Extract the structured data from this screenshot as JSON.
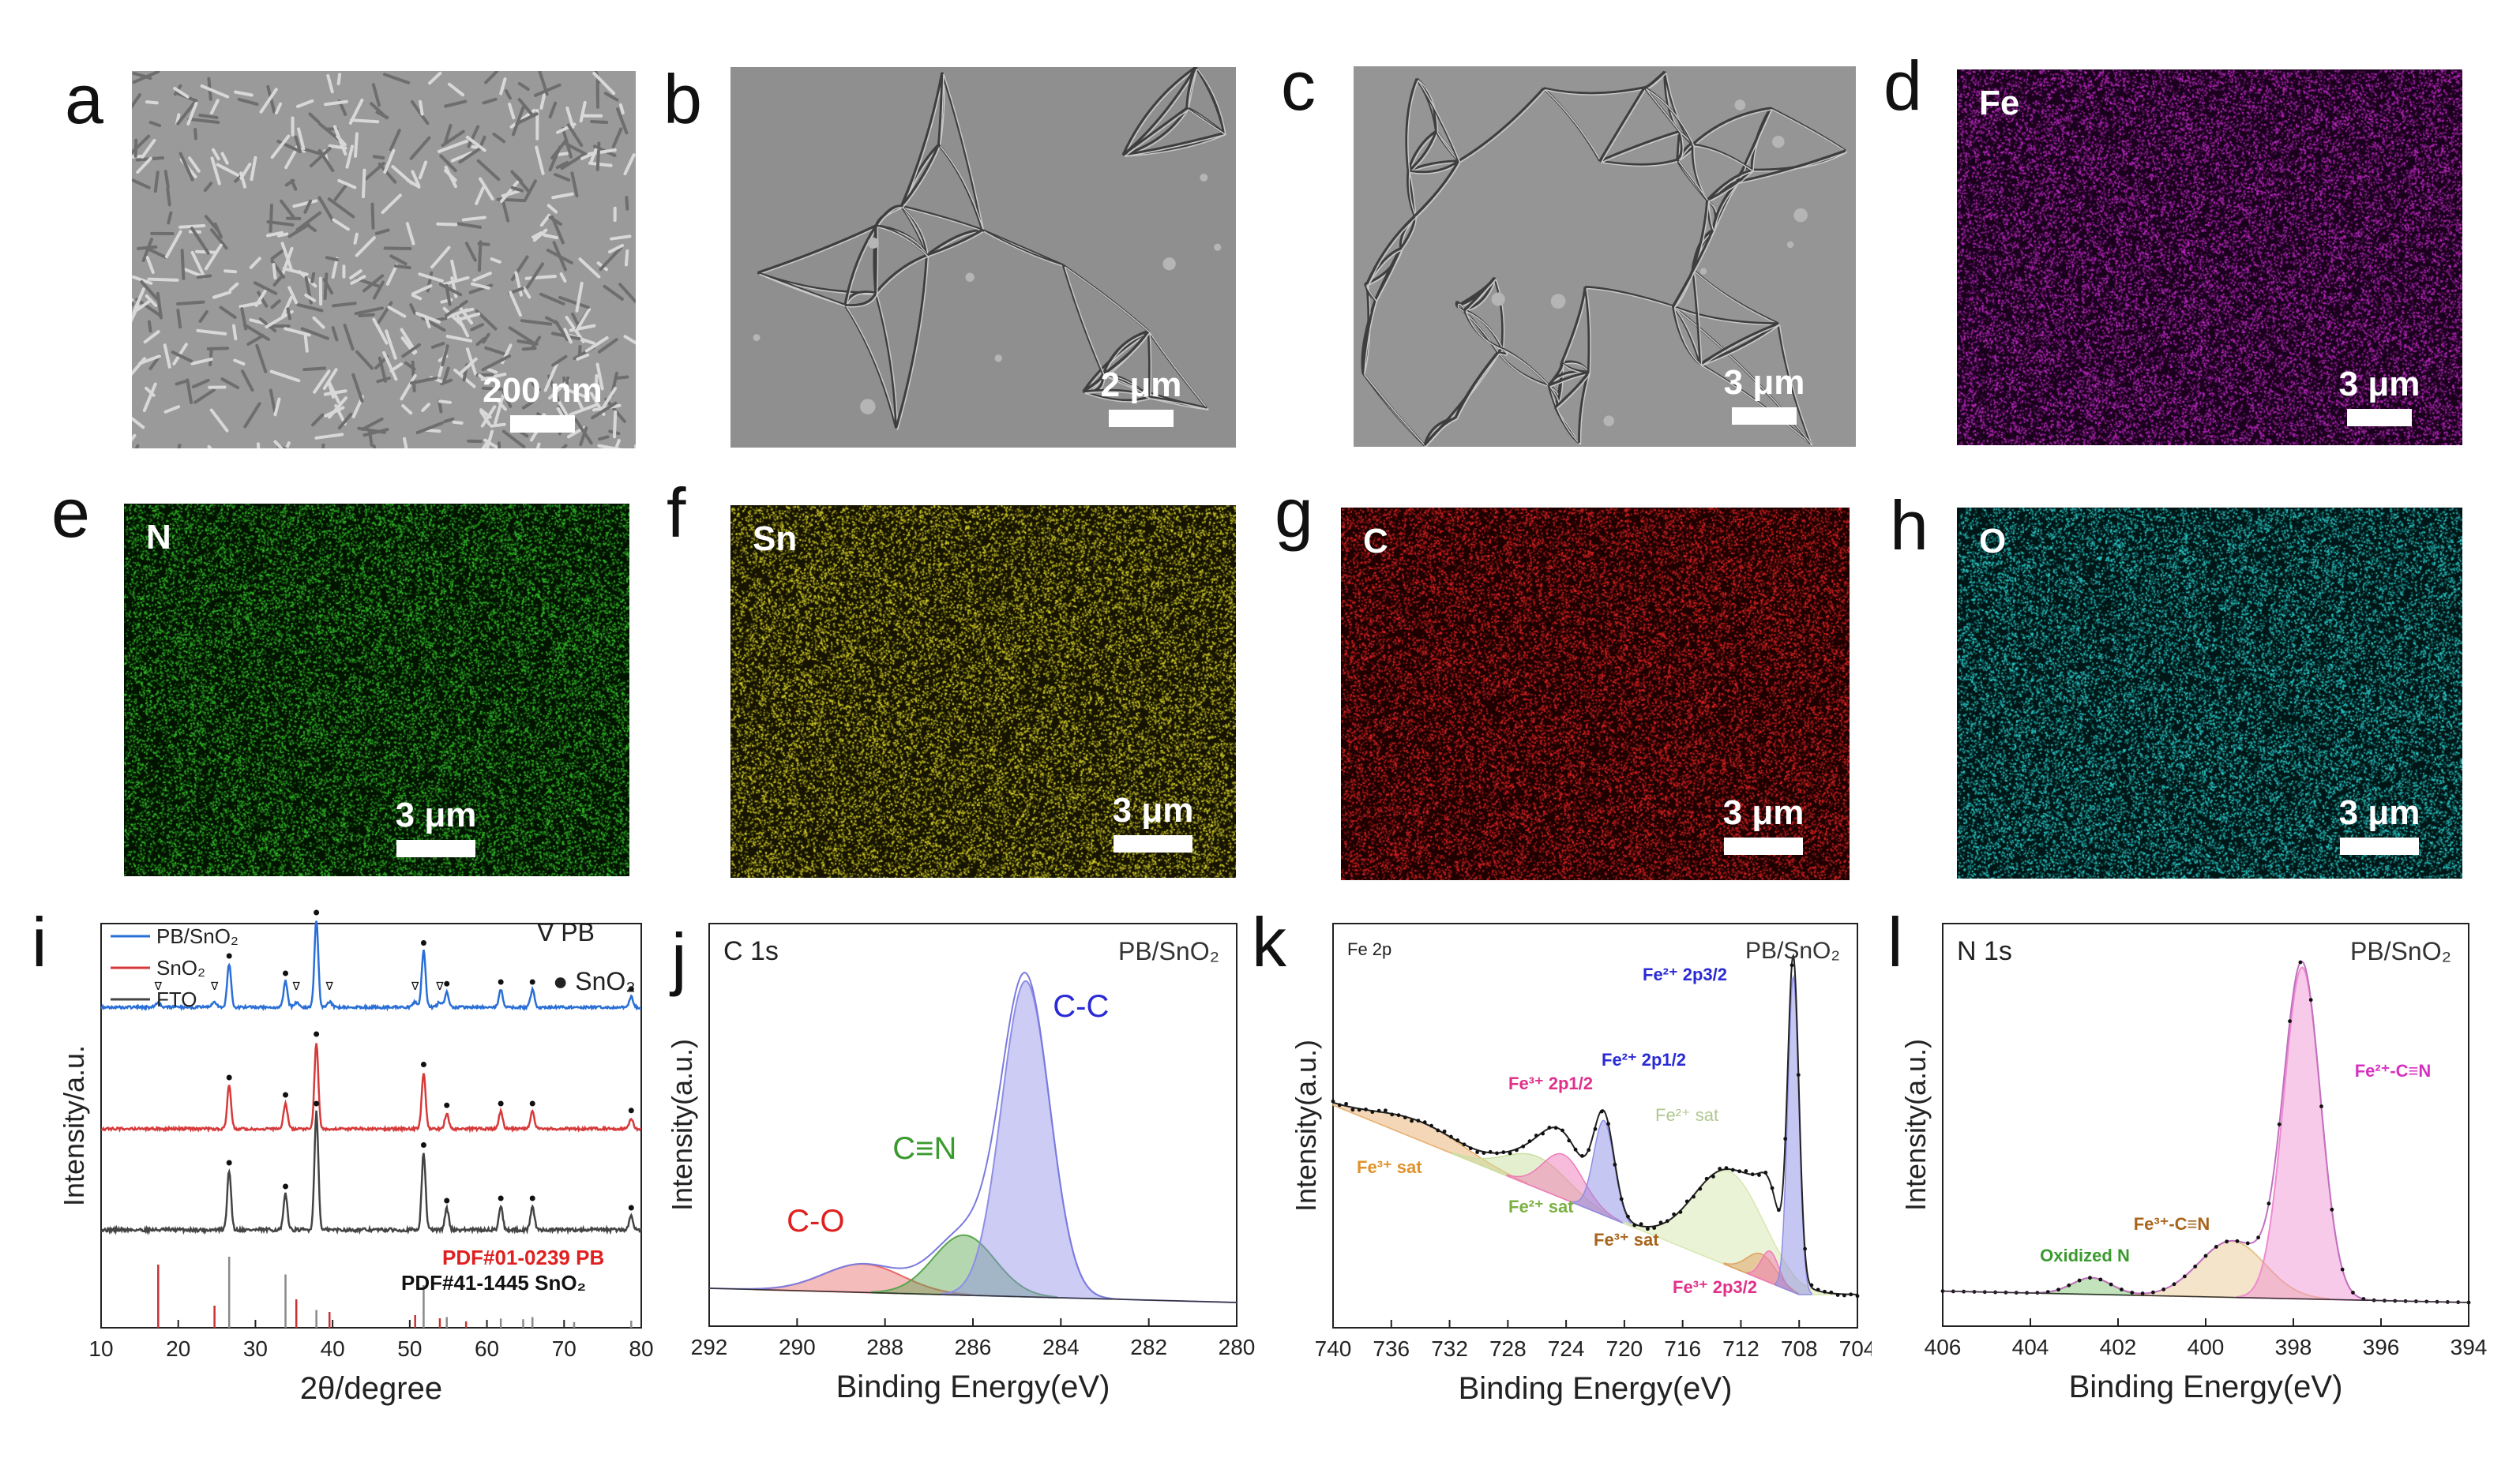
{
  "panels": {
    "a": {
      "letter": "a",
      "scale": "200 nm"
    },
    "b": {
      "letter": "b",
      "scale": "2 μm"
    },
    "c": {
      "letter": "c",
      "scale": "3 μm"
    },
    "d": {
      "letter": "d",
      "scale": "3 μm",
      "element": "Fe",
      "color": "#c22bc8"
    },
    "e": {
      "letter": "e",
      "scale": "3 μm",
      "element": "N",
      "color": "#35c22b"
    },
    "f": {
      "letter": "f",
      "scale": "3 μm",
      "element": "Sn",
      "color": "#d8d22a"
    },
    "g": {
      "letter": "g",
      "scale": "3 μm",
      "element": "C",
      "color": "#e42424"
    },
    "h": {
      "letter": "h",
      "scale": "3 μm",
      "element": "O",
      "color": "#2ccfcf"
    },
    "i": {
      "letter": "i"
    },
    "j": {
      "letter": "j"
    },
    "k": {
      "letter": "k"
    },
    "l": {
      "letter": "l"
    }
  },
  "chart_data": [
    {
      "id": "i",
      "type": "line",
      "xlabel": "2θ/degree",
      "ylabel": "Intensity/a.u.",
      "xlim": [
        10,
        80
      ],
      "xticks": [
        10,
        20,
        30,
        40,
        50,
        60,
        70,
        80
      ],
      "legend": [
        {
          "name": "PB/SnO₂",
          "color": "#2a6fd6"
        },
        {
          "name": "SnO₂",
          "color": "#d63a3a"
        },
        {
          "name": "FTO",
          "color": "#444444"
        }
      ],
      "marker_legend": [
        {
          "symbol": "∇",
          "label": "PB"
        },
        {
          "symbol": "●",
          "label": "SnO₂"
        }
      ],
      "series": [
        {
          "name": "PB/SnO₂",
          "color": "#2a6fd6",
          "offset": 2
        },
        {
          "name": "SnO₂",
          "color": "#d63a3a",
          "offset": 1
        },
        {
          "name": "FTO",
          "color": "#444444",
          "offset": 0
        }
      ],
      "sno2_peaks": [
        26.6,
        33.9,
        37.9,
        51.8,
        54.8,
        61.8,
        65.9,
        78.7
      ],
      "pb_peaks": [
        17.4,
        24.7,
        35.3,
        39.6,
        50.7,
        53.9
      ],
      "ref_labels": [
        {
          "text": "PDF#01-0239 PB",
          "color": "#e02020"
        },
        {
          "text": "PDF#41-1445 SnO₂",
          "color": "#111111"
        }
      ],
      "ref_pb": [
        {
          "x": 17.4,
          "h": 1.0
        },
        {
          "x": 24.7,
          "h": 0.35
        },
        {
          "x": 35.3,
          "h": 0.45
        },
        {
          "x": 39.6,
          "h": 0.25
        },
        {
          "x": 50.7,
          "h": 0.2
        },
        {
          "x": 53.9,
          "h": 0.15
        },
        {
          "x": 57.3,
          "h": 0.1
        }
      ],
      "ref_sno2": [
        {
          "x": 26.6,
          "h": 1.0
        },
        {
          "x": 33.9,
          "h": 0.75
        },
        {
          "x": 37.9,
          "h": 0.25
        },
        {
          "x": 51.8,
          "h": 0.6
        },
        {
          "x": 54.8,
          "h": 0.15
        },
        {
          "x": 61.8,
          "h": 0.13
        },
        {
          "x": 64.7,
          "h": 0.12
        },
        {
          "x": 65.9,
          "h": 0.15
        },
        {
          "x": 71.3,
          "h": 0.08
        },
        {
          "x": 78.7,
          "h": 0.1
        }
      ]
    },
    {
      "id": "j",
      "type": "line",
      "title": "C 1s",
      "sample": "PB/SnO₂",
      "xlabel": "Binding Energy(eV)",
      "ylabel": "Intensity(a.u.)",
      "xlim": [
        292,
        280
      ],
      "xticks": [
        292,
        290,
        288,
        286,
        284,
        282,
        280
      ],
      "peaks": [
        {
          "label": "C-O",
          "center": 288.5,
          "height": 0.09,
          "width": 0.9,
          "color": "#e86a6a",
          "label_color": "#e02020"
        },
        {
          "label": "C≡N",
          "center": 286.2,
          "height": 0.19,
          "width": 0.7,
          "color": "#5aa64e",
          "label_color": "#3a9a2e"
        },
        {
          "label": "C-C",
          "center": 284.8,
          "height": 1.0,
          "width": 0.55,
          "color": "#8e8ee6",
          "label_color": "#2a2ad6"
        }
      ]
    },
    {
      "id": "k",
      "type": "line",
      "title": "Fe 2p",
      "sample": "PB/SnO₂",
      "xlabel": "Binding Energy(eV)",
      "ylabel": "Intensity(a.u.)",
      "xlim": [
        740,
        704
      ],
      "xticks": [
        740,
        736,
        732,
        728,
        724,
        720,
        716,
        712,
        708,
        704
      ],
      "annotations": [
        {
          "text": "Fe³⁺ sat",
          "color": "#e0922a"
        },
        {
          "text": "Fe²⁺ sat",
          "color": "#7ab040"
        },
        {
          "text": "Fe³⁺ 2p1/2",
          "color": "#e0308a"
        },
        {
          "text": "Fe²⁺ 2p1/2",
          "color": "#2a2ad6"
        },
        {
          "text": "Fe²⁺ sat",
          "color": "#b0c890"
        },
        {
          "text": "Fe²⁺ 2p3/2",
          "color": "#2a2ad6"
        },
        {
          "text": "Fe³⁺ sat",
          "color": "#a8641c"
        },
        {
          "text": "Fe³⁺ 2p3/2",
          "color": "#e0308a"
        }
      ]
    },
    {
      "id": "l",
      "type": "line",
      "title": "N 1s",
      "sample": "PB/SnO₂",
      "xlabel": "Binding Energy(eV)",
      "ylabel": "Intensity(a.u.)",
      "xlim": [
        406,
        394
      ],
      "xticks": [
        406,
        404,
        402,
        400,
        398,
        396,
        394
      ],
      "peaks": [
        {
          "label": "Oxidized N",
          "center": 402.6,
          "height": 0.05,
          "width": 0.45,
          "color": "#7ac06a",
          "label_color": "#3a9a2e"
        },
        {
          "label": "Fe³⁺-C≡N",
          "center": 399.4,
          "height": 0.17,
          "width": 0.75,
          "color": "#e6c48a",
          "label_color": "#a8641c"
        },
        {
          "label": "Fe²⁺-C≡N",
          "center": 397.8,
          "height": 1.0,
          "width": 0.42,
          "color": "#f08ad0",
          "label_color": "#d630c0"
        }
      ]
    }
  ]
}
